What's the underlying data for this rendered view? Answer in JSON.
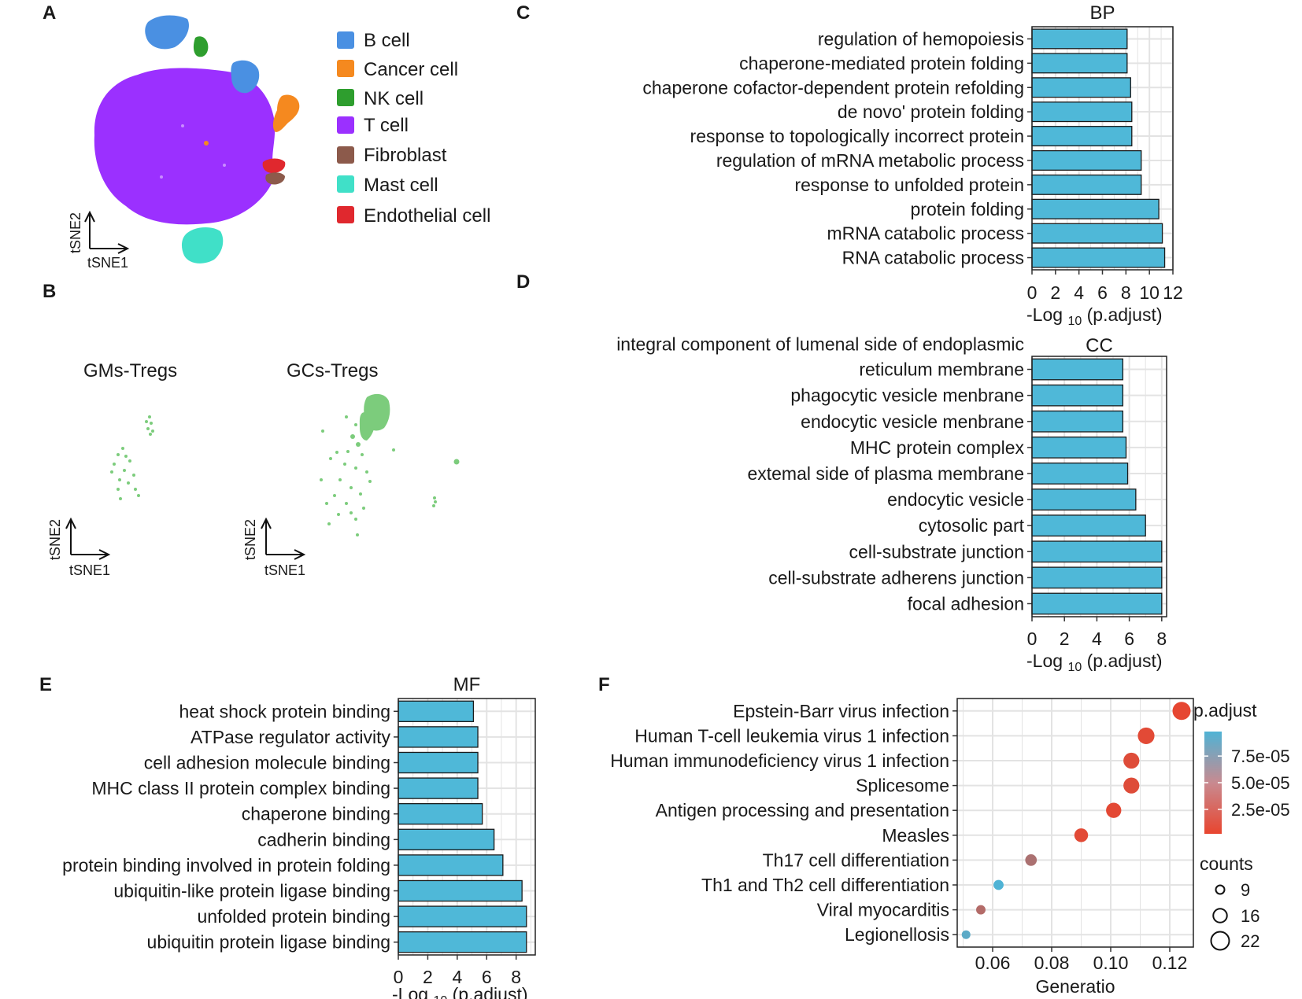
{
  "panels": {
    "A": "A",
    "B": "B",
    "C": "C",
    "D": "D",
    "E": "E",
    "F": "F"
  },
  "tsne": {
    "axis_x": "tSNE1",
    "axis_y": "tSNE2"
  },
  "colors": {
    "bar": "#4fb8d8",
    "bar_edge": "#1a1a1a",
    "grid": "#e3e3e3",
    "treg": "#7ccc7c"
  },
  "legend_a": [
    {
      "label": "B cell",
      "color": "#4a90e2"
    },
    {
      "label": "Cancer cell",
      "color": "#f5891f"
    },
    {
      "label": "NK cell",
      "color": "#2e9e2e"
    },
    {
      "label": "T cell",
      "color": "#9b30ff"
    },
    {
      "label": "Fibroblast",
      "color": "#8c5a4b"
    },
    {
      "label": "Mast cell",
      "color": "#40e0c8"
    },
    {
      "label": "Endothelial cell",
      "color": "#e0282e"
    }
  ],
  "panel_b": {
    "left_title": "GMs-Tregs",
    "right_title": "GCs-Tregs"
  },
  "chart_data": [
    {
      "id": "C",
      "type": "bar",
      "orientation": "horizontal",
      "title": "BP",
      "xlabel_pre": "-Log",
      "xlabel_sub": "10",
      "xlabel_post": "(p.adjust)",
      "xlim": [
        0,
        12
      ],
      "ticks": [
        0,
        2,
        4,
        6,
        8,
        10,
        12
      ],
      "categories": [
        [
          "regulation of hemopoiesis"
        ],
        [
          "chaperone-mediated protein folding"
        ],
        [
          "chaperone cofactor-dependent protein refolding"
        ],
        [
          "de novo' protein folding"
        ],
        [
          "response to topologically incorrect protein"
        ],
        [
          "regulation of mRNA metabolic process"
        ],
        [
          "response to unfolded protein"
        ],
        [
          "protein folding"
        ],
        [
          "mRNA catabolic process"
        ],
        [
          "RNA catabolic process"
        ]
      ],
      "values": [
        8.1,
        8.1,
        8.4,
        8.5,
        8.5,
        9.3,
        9.3,
        10.8,
        11.1,
        11.3
      ]
    },
    {
      "id": "D",
      "type": "bar",
      "orientation": "horizontal",
      "title": "CC",
      "xlabel_pre": "-Log",
      "xlabel_sub": "10",
      "xlabel_post": "(p.adjust)",
      "xlim": [
        0,
        8.3
      ],
      "ticks": [
        0,
        2,
        4,
        6,
        8
      ],
      "categories": [
        [
          "integral component of lumenal side of endoplasmic",
          "reticulum membrane"
        ],
        [
          "phagocytic vesicle menbrane"
        ],
        [
          "endocytic vesicle menbrane"
        ],
        [
          "MHC protein complex"
        ],
        [
          "extemal side of plasma membrane"
        ],
        [
          "endocytic vesicle"
        ],
        [
          "cytosolic part"
        ],
        [
          "cell-substrate junction"
        ],
        [
          "cell-substrate adherens junction"
        ],
        [
          "focal adhesion"
        ]
      ],
      "values": [
        5.6,
        5.6,
        5.6,
        5.8,
        5.9,
        6.4,
        7.0,
        8.0,
        8.0,
        8.0
      ]
    },
    {
      "id": "E",
      "type": "bar",
      "orientation": "horizontal",
      "title": "MF",
      "xlabel_pre": "-Log",
      "xlabel_sub": "10",
      "xlabel_post": "(p.adjust)",
      "xlim": [
        0,
        9.3
      ],
      "ticks": [
        0,
        2,
        4,
        6,
        8
      ],
      "categories": [
        [
          "heat shock protein binding"
        ],
        [
          "ATPase regulator activity"
        ],
        [
          "cell adhesion molecule binding"
        ],
        [
          "MHC class II protein complex binding"
        ],
        [
          "chaperone binding"
        ],
        [
          "cadherin binding"
        ],
        [
          "protein binding involved in protein folding"
        ],
        [
          "ubiquitin-like protein ligase binding"
        ],
        [
          "unfolded protein binding"
        ],
        [
          "ubiquitin protein ligase binding"
        ]
      ],
      "values": [
        5.1,
        5.4,
        5.4,
        5.4,
        5.7,
        6.5,
        7.1,
        8.4,
        8.7,
        8.7
      ]
    },
    {
      "id": "F",
      "type": "scatter",
      "title": "",
      "xlabel": "Generatio",
      "xlim": [
        0.048,
        0.128
      ],
      "ticks": [
        0.06,
        0.08,
        0.1,
        0.12
      ],
      "tick_labels": [
        "0.06",
        "0.08",
        "0.10",
        "0.12"
      ],
      "categories": [
        "Epstein-Barr virus infection",
        "Human T-cell leukemia virus 1 infection",
        "Human immunodeficiency virus 1 infection",
        "Splicesome",
        "Antigen processing and presentation",
        "Measles",
        "Th17 cell differentiation",
        "Th1 and Th2 cell differentiation",
        "Viral myocarditis",
        "Legionellosis"
      ],
      "x": [
        0.124,
        0.112,
        0.107,
        0.107,
        0.101,
        0.09,
        0.073,
        0.062,
        0.056,
        0.051
      ],
      "counts": [
        22,
        20,
        19,
        19,
        18,
        16,
        13,
        11,
        10,
        9
      ],
      "p_adjust": [
        3e-06,
        6e-06,
        8e-06,
        8e-06,
        5e-06,
        6e-06,
        4e-05,
        9.8e-05,
        3.5e-05,
        9e-05
      ],
      "color_legend": {
        "title": "p.adjust",
        "labels": [
          "7.5e-05",
          "5.0e-05",
          "2.5e-05"
        ],
        "values": [
          7.5e-05,
          5e-05,
          2.5e-05
        ],
        "range": [
          2e-06,
          9.8e-05
        ],
        "low_color": "#e8452f",
        "high_color": "#4fb3d5"
      },
      "size_legend": {
        "title": "counts",
        "labels": [
          "9",
          "16",
          "22"
        ],
        "values": [
          9,
          16,
          22
        ]
      }
    }
  ]
}
